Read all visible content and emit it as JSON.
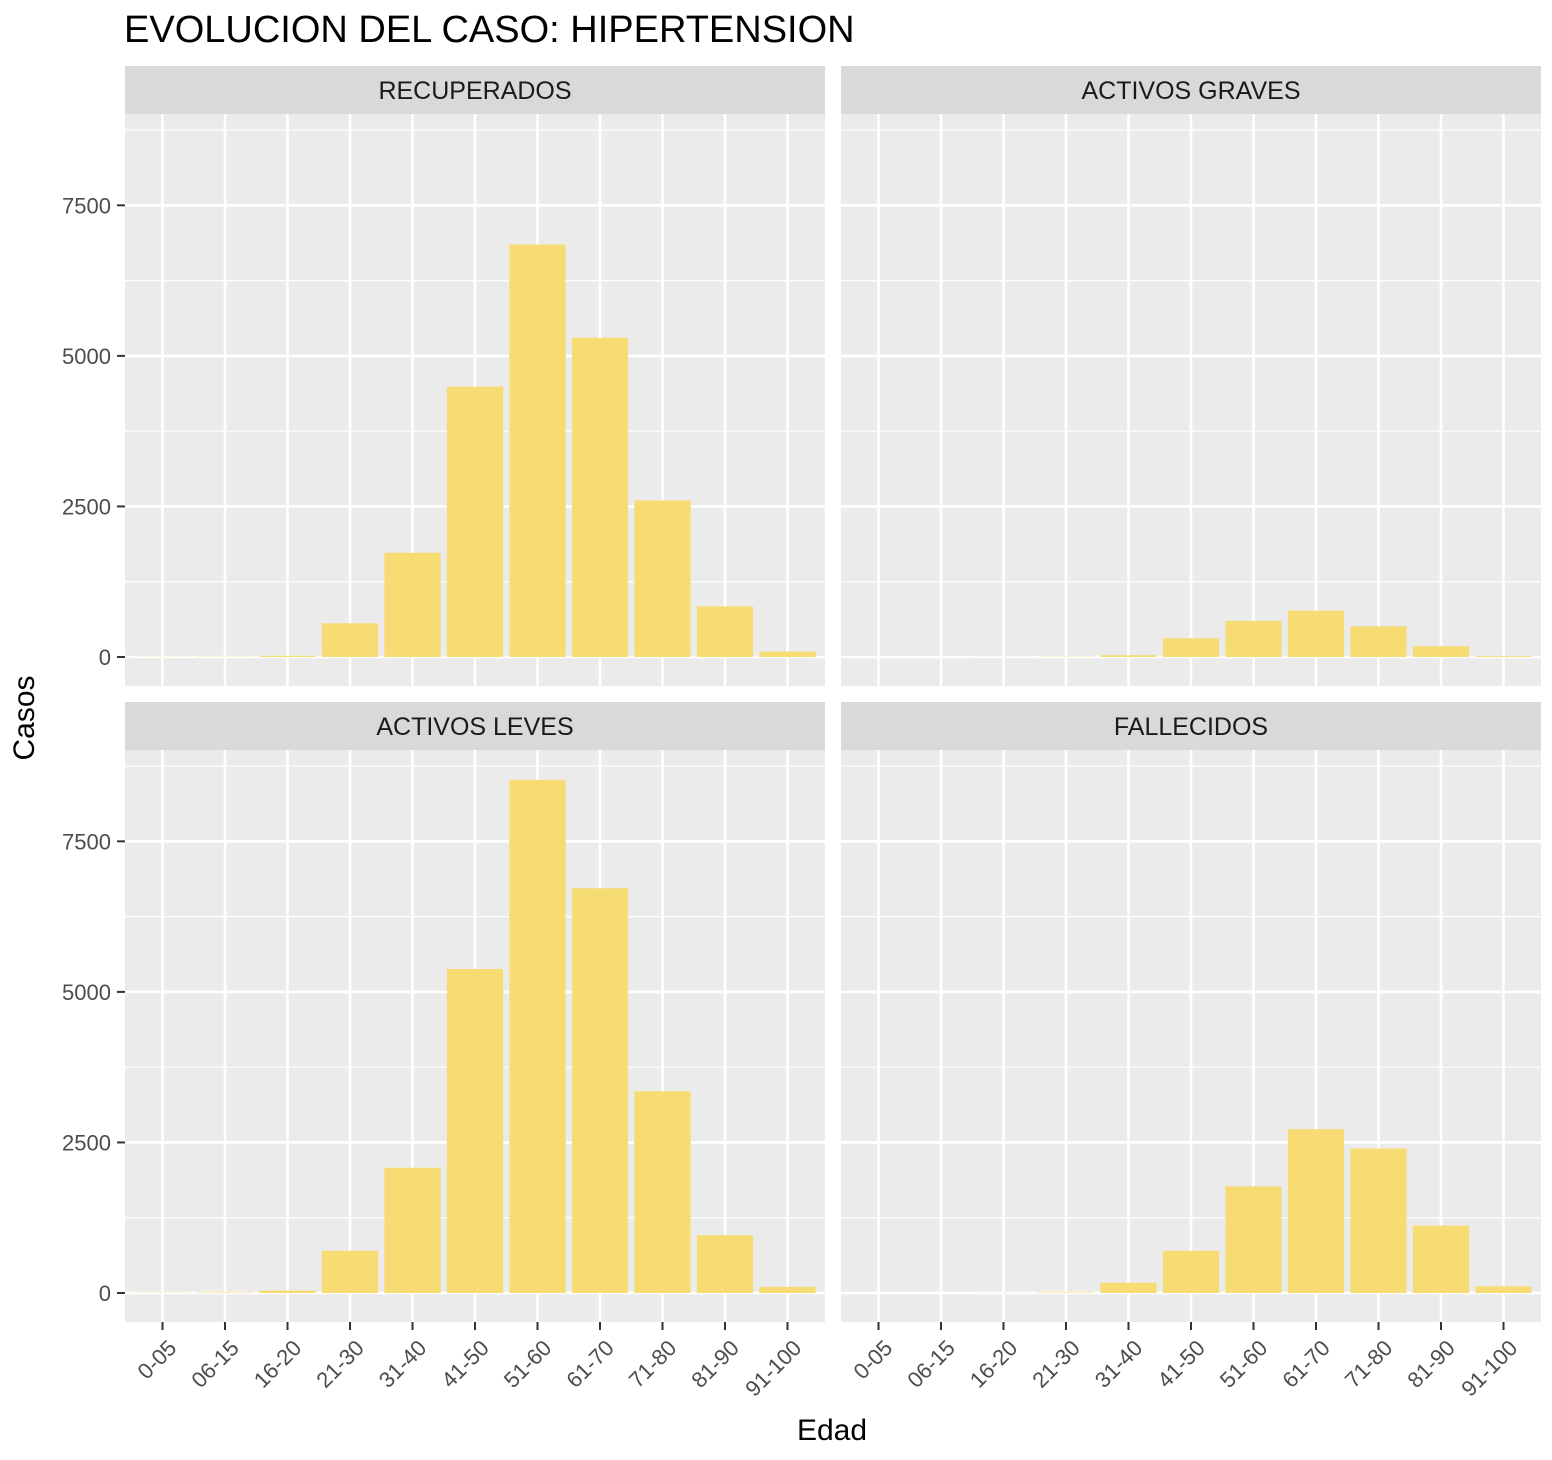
{
  "chart_data": {
    "type": "bar",
    "title": "EVOLUCION DEL CASO: HIPERTENSION",
    "xlabel": "Edad",
    "ylabel": "Casos",
    "ylim": [
      0,
      9000
    ],
    "yticks": [
      0,
      2500,
      5000,
      7500
    ],
    "categories": [
      "0-05",
      "06-15",
      "16-20",
      "21-30",
      "31-40",
      "41-50",
      "51-60",
      "61-70",
      "71-80",
      "81-90",
      "91-100"
    ],
    "bar_color": "#F6DC72",
    "panel_bg": "#EBEBEB",
    "strip_bg": "#D9D9D9",
    "grid": true,
    "legend": "none",
    "panels": [
      {
        "name": "RECUPERADOS",
        "values": [
          3,
          5,
          20,
          560,
          1730,
          4490,
          6850,
          5300,
          2600,
          840,
          90
        ]
      },
      {
        "name": "ACTIVOS GRAVES",
        "values": [
          0,
          0,
          2,
          5,
          30,
          310,
          600,
          770,
          510,
          180,
          15
        ]
      },
      {
        "name": "ACTIVOS LEVES",
        "values": [
          5,
          10,
          40,
          700,
          2080,
          5380,
          8520,
          6720,
          3350,
          960,
          100
        ]
      },
      {
        "name": "FALLECIDOS",
        "values": [
          0,
          0,
          2,
          10,
          170,
          700,
          1770,
          2720,
          2400,
          1120,
          110
        ]
      }
    ]
  }
}
